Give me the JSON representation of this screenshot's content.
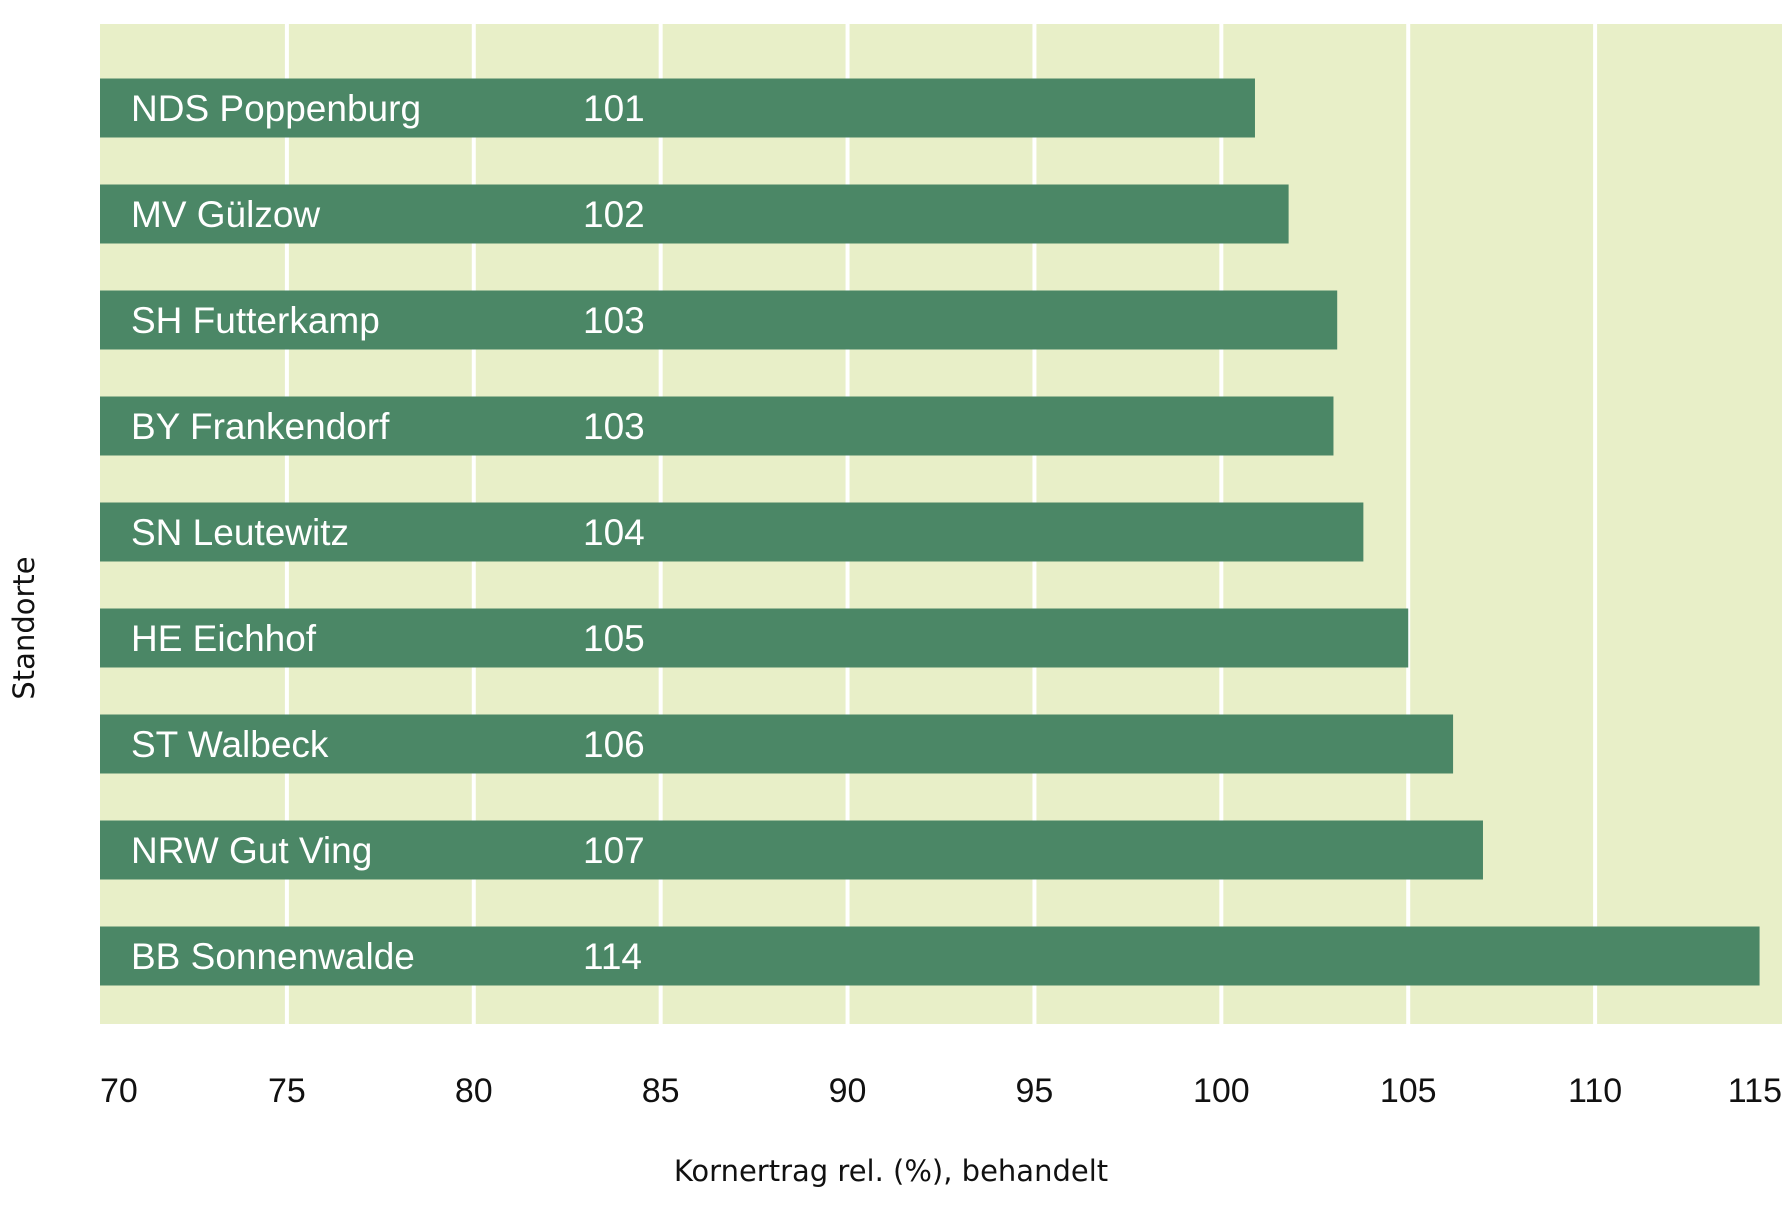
{
  "chart_data": {
    "type": "bar",
    "orientation": "horizontal",
    "categories": [
      "NDS Poppenburg",
      "MV Gülzow",
      "SH Futterkamp",
      "BY Frankendorf",
      "SN Leutewitz",
      "HE Eichhof",
      "ST Walbeck",
      "NRW Gut Ving",
      "BB Sonnenwalde"
    ],
    "values": [
      100.9,
      101.8,
      103.1,
      103.0,
      103.8,
      105.0,
      106.2,
      107.0,
      114.4
    ],
    "data_labels": [
      "101",
      "102",
      "103",
      "103",
      "104",
      "105",
      "106",
      "107",
      "114"
    ],
    "xlabel": "Kornertrag rel. (%), behandelt",
    "ylabel": "Standorte",
    "xlim": [
      70,
      115
    ],
    "xticks": [
      "70",
      "75",
      "80",
      "85",
      "90",
      "95",
      "100",
      "105",
      "110",
      "115"
    ],
    "grid": "vertical",
    "colors": {
      "bar": "#4b8766",
      "plot_background": "#e8efc8",
      "grid": "#ffffff"
    }
  }
}
